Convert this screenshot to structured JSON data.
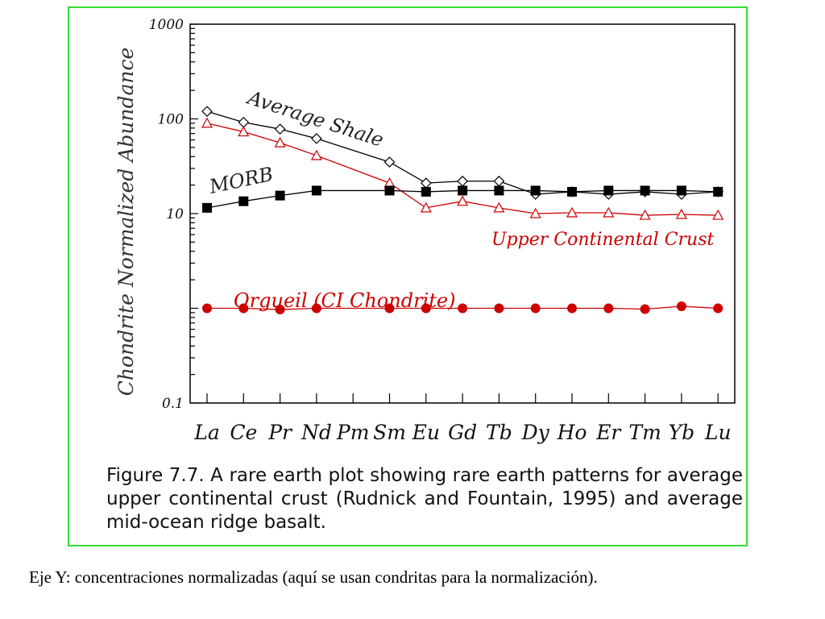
{
  "chart_data": {
    "type": "line",
    "yscale": "log",
    "ylabel": "Chondrite Normalized Abundance",
    "ylim": [
      0.1,
      1000
    ],
    "yticks": [
      0.1,
      10,
      100,
      1000
    ],
    "ytick_labels": [
      "0.1",
      "10",
      "100",
      "1000"
    ],
    "categories": [
      "La",
      "Ce",
      "Pr",
      "Nd",
      "Pm",
      "Sm",
      "Eu",
      "Gd",
      "Tb",
      "Dy",
      "Ho",
      "Er",
      "Tm",
      "Yb",
      "Lu"
    ],
    "series": [
      {
        "name": "Average Shale",
        "color": "#000000",
        "marker": "diamond-open",
        "values": [
          120,
          92,
          78,
          62,
          null,
          35,
          21,
          22,
          22,
          16,
          17,
          16,
          17,
          16,
          17
        ]
      },
      {
        "name": "Upper Continental Crust",
        "color": "#cc0000",
        "marker": "triangle-open",
        "values": [
          90,
          73,
          56,
          41,
          null,
          21,
          11.5,
          13.5,
          11.5,
          10,
          10.2,
          10.2,
          9.6,
          9.8,
          9.6
        ]
      },
      {
        "name": "MORB",
        "color": "#000000",
        "marker": "square-filled",
        "values": [
          11.5,
          13.5,
          15.5,
          17.5,
          null,
          17.5,
          17,
          17.5,
          17.5,
          17.5,
          17,
          17.5,
          17.5,
          17.5,
          17
        ]
      },
      {
        "name": "Orgueil (CI Chondrite)",
        "color": "#cc0000",
        "marker": "circle-filled",
        "values": [
          1,
          1,
          0.97,
          1,
          null,
          1,
          1,
          1,
          1,
          1,
          1,
          1,
          0.98,
          1.05,
          1
        ]
      }
    ],
    "curve_labels": [
      "Average Shale",
      "MORB",
      "Upper Continental Crust",
      "Orgueil (CI Chondrite)"
    ]
  },
  "caption": "Figure 7.7.  A rare earth plot showing rare earth patterns for average upper continental crust (Rudnick and Fountain, 1995) and average mid-ocean ridge basalt.",
  "footnote": "Eje Y: concentraciones normalizadas (aquí se usan condritas para la normalización).",
  "colors": {
    "frame": "#33dd33",
    "red": "#cc0000",
    "black": "#000000"
  }
}
